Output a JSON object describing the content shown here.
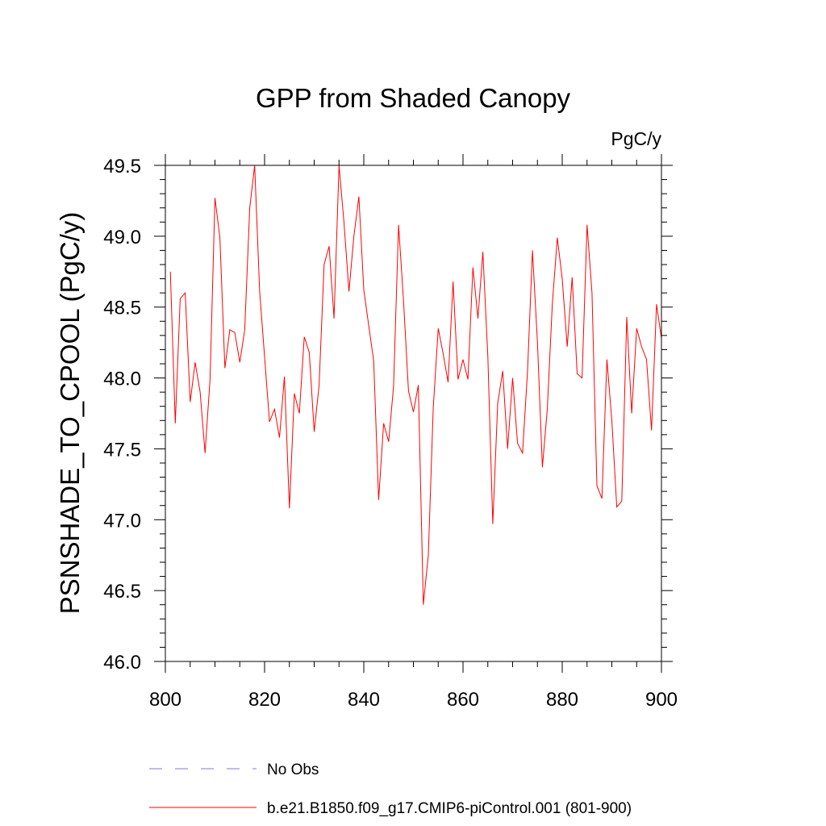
{
  "chart_data": {
    "type": "line",
    "title": "GPP from Shaded Canopy",
    "units": "PgC/y",
    "ylabel": "PSNSHADE_TO_CPOOL  (PgC/y)",
    "xlabel": "",
    "xlim": [
      800,
      900
    ],
    "ylim": [
      46.0,
      49.5
    ],
    "xticks": [
      800,
      820,
      840,
      860,
      880,
      900
    ],
    "yticks": [
      46.0,
      46.5,
      47.0,
      47.5,
      48.0,
      48.5,
      49.0,
      49.5
    ],
    "ytick_labels": [
      "46.0",
      "46.5",
      "47.0",
      "47.5",
      "48.0",
      "48.5",
      "49.0",
      "49.5"
    ],
    "series": [
      {
        "name": "b.e21.B1850.f09_g17.CMIP6-piControl.001 (801-900)",
        "color": "#ff0000",
        "style": "solid",
        "x": [
          801,
          802,
          803,
          804,
          805,
          806,
          807,
          808,
          809,
          810,
          811,
          812,
          813,
          814,
          815,
          816,
          817,
          818,
          819,
          820,
          821,
          822,
          823,
          824,
          825,
          826,
          827,
          828,
          829,
          830,
          831,
          832,
          833,
          834,
          835,
          836,
          837,
          838,
          839,
          840,
          841,
          842,
          843,
          844,
          845,
          846,
          847,
          848,
          849,
          850,
          851,
          852,
          853,
          854,
          855,
          856,
          857,
          858,
          859,
          860,
          861,
          862,
          863,
          864,
          865,
          866,
          867,
          868,
          869,
          870,
          871,
          872,
          873,
          874,
          875,
          876,
          877,
          878,
          879,
          880,
          881,
          882,
          883,
          884,
          885,
          886,
          887,
          888,
          889,
          890,
          891,
          892,
          893,
          894,
          895,
          896,
          897,
          898,
          899,
          900
        ],
        "values": [
          48.75,
          47.68,
          48.56,
          48.6,
          47.83,
          48.11,
          47.9,
          47.47,
          47.99,
          49.27,
          48.99,
          48.07,
          48.34,
          48.32,
          48.11,
          48.34,
          49.2,
          49.5,
          48.61,
          48.15,
          47.69,
          47.78,
          47.58,
          48.01,
          47.08,
          47.89,
          47.75,
          48.29,
          48.18,
          47.62,
          47.95,
          48.8,
          48.93,
          48.42,
          49.5,
          49.1,
          48.61,
          49.0,
          49.28,
          48.62,
          48.37,
          48.12,
          47.14,
          47.68,
          47.55,
          47.94,
          49.08,
          48.55,
          47.91,
          47.76,
          47.95,
          46.4,
          46.75,
          47.79,
          48.35,
          48.17,
          47.97,
          48.68,
          47.99,
          48.13,
          47.99,
          48.78,
          48.42,
          48.89,
          48.15,
          46.97,
          47.82,
          48.05,
          47.5,
          48.0,
          47.54,
          47.47,
          48.05,
          48.9,
          48.25,
          47.37,
          47.78,
          48.52,
          48.99,
          48.7,
          48.22,
          48.71,
          48.03,
          48.0,
          49.08,
          48.6,
          47.24,
          47.15,
          48.13,
          47.7,
          47.09,
          47.13,
          48.43,
          47.75,
          48.35,
          48.22,
          48.13,
          47.63,
          48.52,
          48.28
        ]
      }
    ],
    "legend": {
      "position": "bottom",
      "entries": [
        {
          "label": "No Obs",
          "color": "#7b7bdb",
          "style": "dashed"
        },
        {
          "label": "b.e21.B1850.f09_g17.CMIP6-piControl.001 (801-900)",
          "color": "#ff0000",
          "style": "solid"
        }
      ]
    }
  }
}
